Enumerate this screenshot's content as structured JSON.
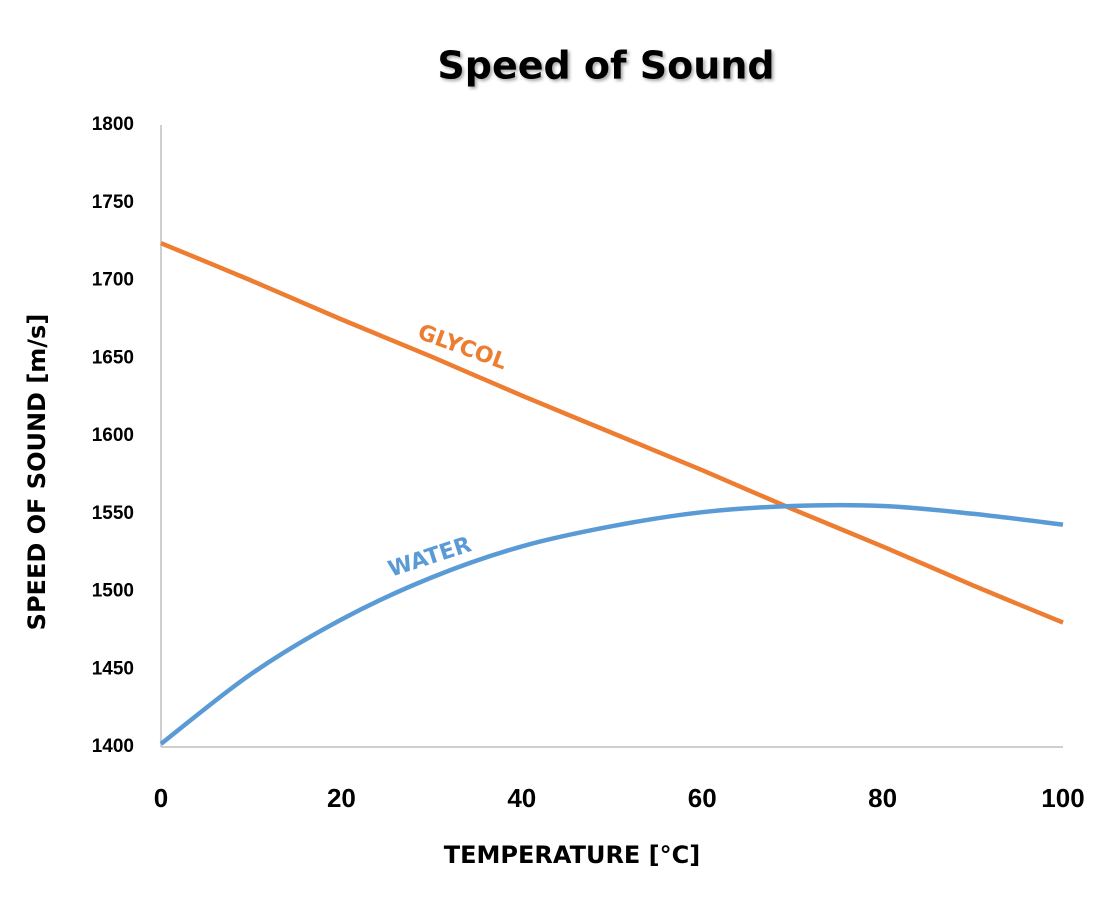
{
  "chart_data": {
    "type": "line",
    "title": "Speed of Sound",
    "x_label": "TEMPERATURE [°C]",
    "y_label": "SPEED OF SOUND [m/s]",
    "x": [
      0,
      10,
      20,
      30,
      40,
      50,
      60,
      70,
      80,
      90,
      100
    ],
    "series": [
      {
        "name": "GLYCOL",
        "color": "#ed7d31",
        "values": [
          1724,
          1700,
          1675,
          1651,
          1626,
          1602,
          1578,
          1553,
          1529,
          1504,
          1480
        ]
      },
      {
        "name": "WATER",
        "color": "#5b9bd5",
        "values": [
          1402,
          1447,
          1482,
          1509,
          1529,
          1542,
          1551,
          1555,
          1555,
          1550,
          1543
        ]
      }
    ],
    "xlim": [
      0,
      100
    ],
    "xticks": [
      0,
      20,
      40,
      60,
      80,
      100
    ],
    "ylim": [
      1400,
      1800
    ],
    "yticks": [
      1400,
      1450,
      1500,
      1550,
      1600,
      1650,
      1700,
      1750,
      1800
    ],
    "grid": false
  }
}
